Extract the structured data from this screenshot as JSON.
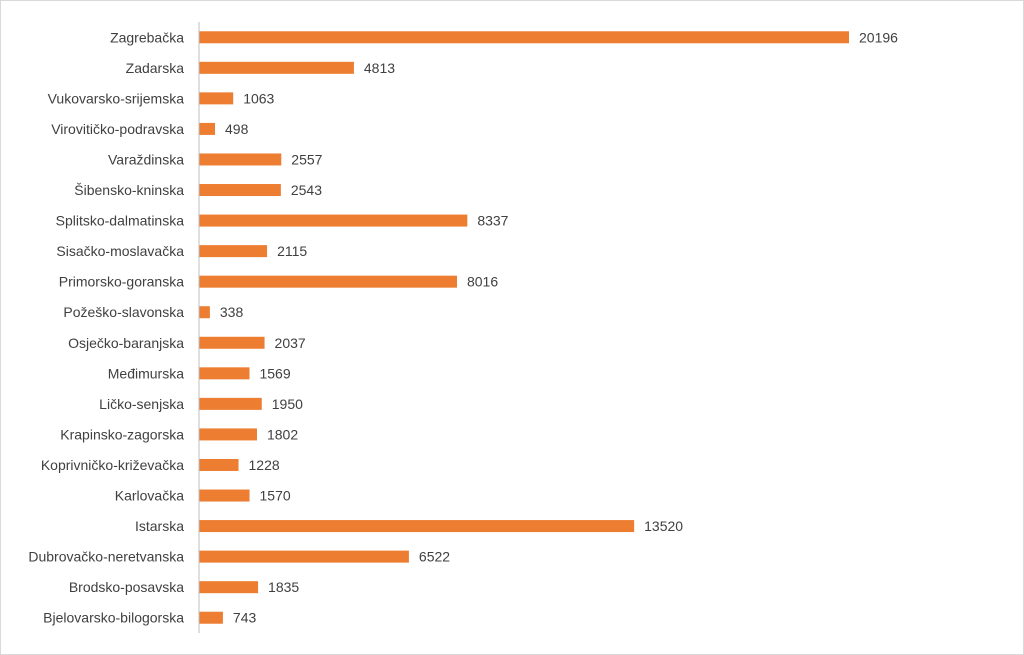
{
  "colors": {
    "bar": "#ed7d31",
    "axis": "#bfbfbf",
    "text": "#404040",
    "border": "#d9d9d9"
  },
  "chart_data": {
    "type": "bar",
    "orientation": "horizontal",
    "title": "",
    "xlabel": "",
    "ylabel": "",
    "grid": false,
    "legend": "none",
    "xlim": [
      0,
      20196
    ],
    "categories": [
      "Zagrebačka",
      "Zadarska",
      "Vukovarsko-srijemska",
      "Virovitičko-podravska",
      "Varaždinska",
      "Šibensko-kninska",
      "Splitsko-dalmatinska",
      "Sisačko-moslavačka",
      "Primorsko-goranska",
      "Požeško-slavonska",
      "Osječko-baranjska",
      "Međimurska",
      "Ličko-senjska",
      "Krapinsko-zagorska",
      "Koprivničko-križevačka",
      "Karlovačka",
      "Istarska",
      "Dubrovačko-neretvanska",
      "Brodsko-posavska",
      "Bjelovarsko-bilogorska"
    ],
    "values": [
      20196,
      4813,
      1063,
      498,
      2557,
      2543,
      8337,
      2115,
      8016,
      338,
      2037,
      1569,
      1950,
      1802,
      1228,
      1570,
      13520,
      6522,
      1835,
      743
    ]
  }
}
